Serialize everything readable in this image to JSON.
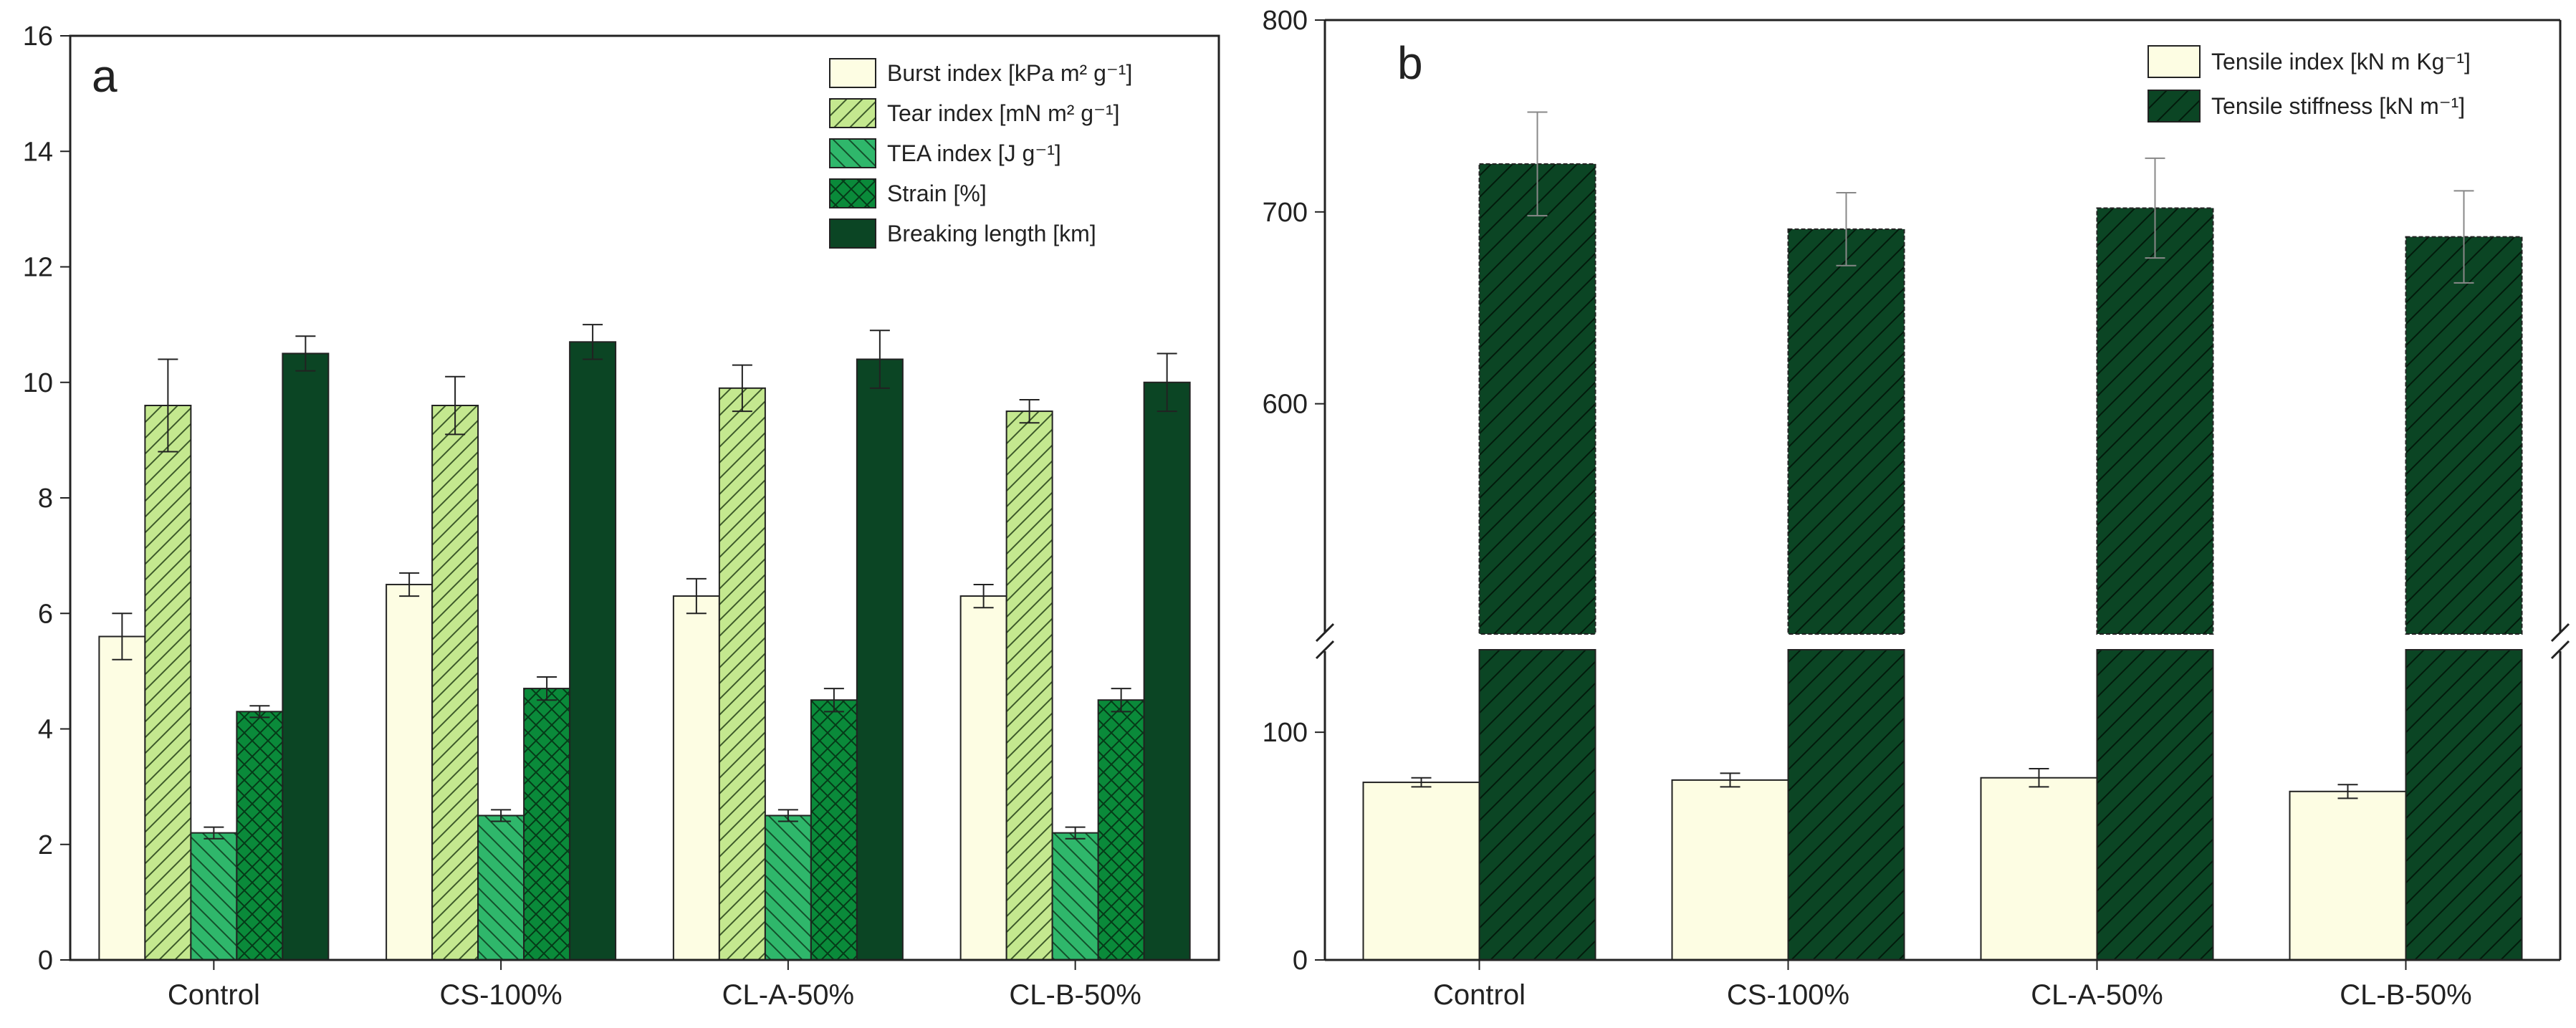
{
  "chart_data": [
    {
      "type": "bar",
      "panel_label": "a",
      "categories": [
        "Control",
        "CS-100%",
        "CL-A-50%",
        "CL-B-50%"
      ],
      "ylim": [
        0,
        16
      ],
      "yticks": [
        "0",
        "2",
        "4",
        "6",
        "8",
        "10",
        "12",
        "14",
        "16"
      ],
      "legend_position": "top-right",
      "series": [
        {
          "name": "Burst index  [kPa m² g⁻¹]",
          "values": [
            5.6,
            6.5,
            6.3,
            6.3
          ],
          "errors": [
            0.4,
            0.2,
            0.3,
            0.2
          ],
          "color": "#fdfde3",
          "pattern": "none"
        },
        {
          "name": "Tear index [mN m² g⁻¹]",
          "values": [
            9.6,
            9.6,
            9.9,
            9.5
          ],
          "errors": [
            0.8,
            0.5,
            0.4,
            0.2
          ],
          "color": "#c4e88f",
          "pattern": "hatch"
        },
        {
          "name": "TEA index [J g⁻¹]",
          "values": [
            2.2,
            2.5,
            2.5,
            2.2
          ],
          "errors": [
            0.1,
            0.1,
            0.1,
            0.1
          ],
          "color": "#2fb76b",
          "pattern": "hatch"
        },
        {
          "name": "Strain [%]",
          "values": [
            4.3,
            4.7,
            4.5,
            4.5
          ],
          "errors": [
            0.1,
            0.2,
            0.2,
            0.2
          ],
          "color": "#0a8a3a",
          "pattern": "crosshatch"
        },
        {
          "name": "Breaking length [km]",
          "values": [
            10.5,
            10.7,
            10.4,
            10.0
          ],
          "errors": [
            0.3,
            0.3,
            0.5,
            0.5
          ],
          "color": "#0b4524",
          "pattern": "none"
        }
      ]
    },
    {
      "type": "bar",
      "panel_label": "b",
      "categories": [
        "Control",
        "CS-100%",
        "CL-A-50%",
        "CL-B-50%"
      ],
      "y_axis_break": [
        140,
        480
      ],
      "ylim": [
        0,
        800
      ],
      "yticks": [
        "0",
        "100",
        "600",
        "700",
        "800"
      ],
      "legend_position": "top-right",
      "series": [
        {
          "name": "Tensile index  [kN m Kg⁻¹]",
          "values": [
            78,
            79,
            80,
            74
          ],
          "errors": [
            2,
            3,
            4,
            3
          ],
          "color": "#fdfde3",
          "pattern": "none"
        },
        {
          "name": "Tensile stiffness [kN m⁻¹]",
          "values": [
            725,
            691,
            702,
            687
          ],
          "errors": [
            27,
            19,
            26,
            24
          ],
          "color": "#0b4524",
          "pattern": "hatch"
        }
      ]
    }
  ]
}
